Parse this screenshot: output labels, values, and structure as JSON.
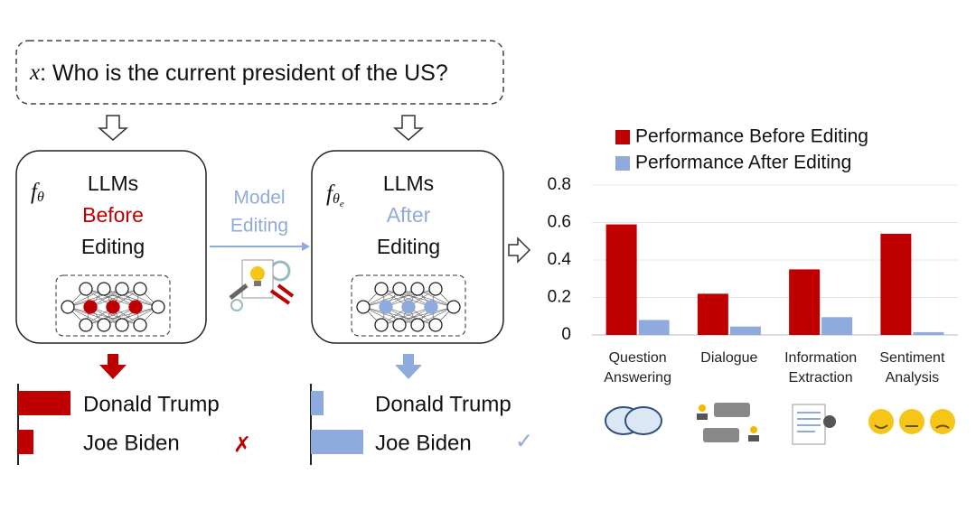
{
  "query": {
    "variable": "x",
    "text": ": Who is the current president of the US?"
  },
  "before_model": {
    "symbol": "f",
    "subscript": "θ",
    "lines": [
      "LLMs",
      "Before",
      "Editing"
    ]
  },
  "after_model": {
    "symbol": "f",
    "subscript": "θ",
    "subsubscript": "e",
    "lines": [
      "LLMs",
      "After",
      "Editing"
    ]
  },
  "edit_arrow": {
    "lines": [
      "Model",
      "Editing"
    ]
  },
  "before_output": {
    "answers": [
      "Donald Trump",
      "Joe Biden"
    ],
    "verdict": "✗"
  },
  "after_output": {
    "answers": [
      "Donald Trump",
      "Joe Biden"
    ],
    "verdict": "✓"
  },
  "chart_data": {
    "type": "bar",
    "categories": [
      "Question Answering",
      "Dialogue",
      "Information Extraction",
      "Sentiment Analysis"
    ],
    "series": [
      {
        "name": "Performance Before Editing",
        "color": "#c00000",
        "values": [
          0.59,
          0.22,
          0.35,
          0.54
        ]
      },
      {
        "name": "Performance After Editing",
        "color": "#8faadc",
        "values": [
          0.08,
          0.045,
          0.095,
          0.015
        ]
      }
    ],
    "ylim": [
      0,
      0.8
    ],
    "yticks": [
      0,
      0.2,
      0.4,
      0.6,
      0.8
    ],
    "grid": true,
    "legend": "top"
  }
}
